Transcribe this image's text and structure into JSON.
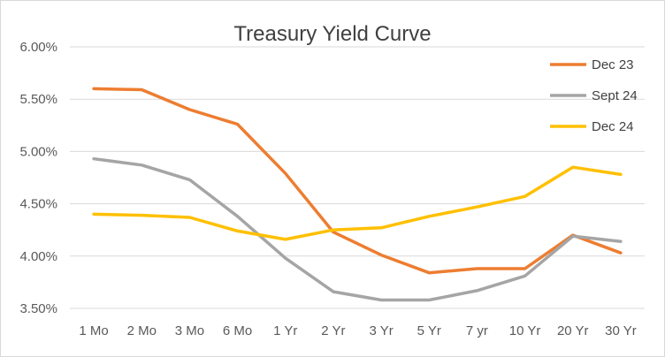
{
  "chart_data": {
    "type": "line",
    "title": "Treasury Yield Curve",
    "xlabel": "",
    "ylabel": "",
    "categories": [
      "1 Mo",
      "2 Mo",
      "3 Mo",
      "6 Mo",
      "1 Yr",
      "2 Yr",
      "3 Yr",
      "5 Yr",
      "7 yr",
      "10 Yr",
      "20 Yr",
      "30 Yr"
    ],
    "ylim": [
      3.5,
      6.0
    ],
    "yticks": [
      3.5,
      4.0,
      4.5,
      5.0,
      5.5,
      6.0
    ],
    "ytick_labels": [
      "3.50%",
      "4.00%",
      "4.50%",
      "5.00%",
      "5.50%",
      "6.00%"
    ],
    "grid": true,
    "legend_position": "top-right",
    "series": [
      {
        "name": "Dec 23",
        "color": "#ED7D31",
        "values": [
          5.6,
          5.59,
          5.4,
          5.26,
          4.79,
          4.23,
          4.01,
          3.84,
          3.88,
          3.88,
          4.2,
          4.03
        ]
      },
      {
        "name": "Sept 24",
        "color": "#A5A5A5",
        "values": [
          4.93,
          4.87,
          4.73,
          4.38,
          3.98,
          3.66,
          3.58,
          3.58,
          3.67,
          3.81,
          4.19,
          4.14
        ]
      },
      {
        "name": "Dec 24",
        "color": "#FFC000",
        "values": [
          4.4,
          4.39,
          4.37,
          4.24,
          4.16,
          4.25,
          4.27,
          4.38,
          4.47,
          4.57,
          4.85,
          4.78
        ]
      }
    ]
  }
}
